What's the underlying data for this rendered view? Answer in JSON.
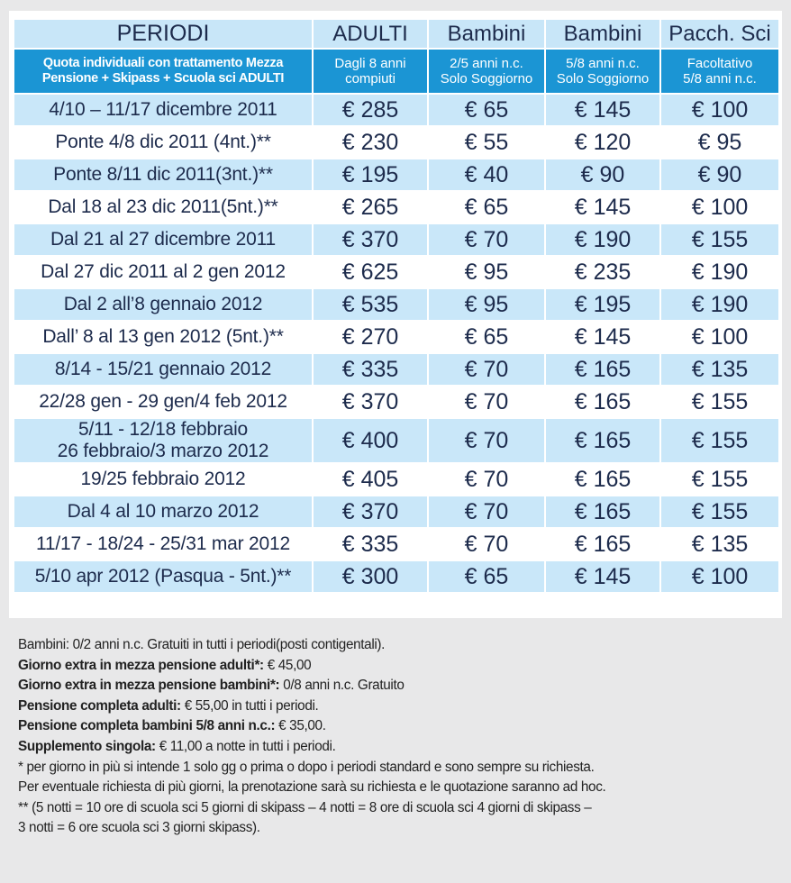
{
  "header": {
    "periodi": "PERIODI",
    "quota": [
      "Quota individuali con trattamento Mezza",
      "Pensione + Skipass + Scuola sci ADULTI"
    ],
    "columns": [
      {
        "title": "ADULTI",
        "sub": [
          "Dagli 8 anni",
          "compiuti"
        ]
      },
      {
        "title": "Bambini",
        "sub": [
          "2/5 anni n.c.",
          "Solo Soggiorno"
        ]
      },
      {
        "title": "Bambini",
        "sub": [
          "5/8 anni n.c.",
          "Solo Soggiorno"
        ]
      },
      {
        "title": "Pacch. Sci",
        "sub": [
          "Facoltativo",
          "5/8 anni n.c."
        ]
      }
    ]
  },
  "rows": [
    {
      "periodo": [
        "4/10 – 11/17 dicembre 2011"
      ],
      "prezzi": [
        "€ 285",
        "€ 65",
        "€ 145",
        "€ 100"
      ]
    },
    {
      "periodo": [
        "Ponte 4/8 dic 2011 (4nt.)**"
      ],
      "prezzi": [
        "€ 230",
        "€ 55",
        "€ 120",
        "€ 95"
      ]
    },
    {
      "periodo": [
        "Ponte 8/11 dic 2011(3nt.)**"
      ],
      "prezzi": [
        "€ 195",
        "€ 40",
        "€ 90",
        "€ 90"
      ]
    },
    {
      "periodo": [
        "Dal 18 al 23 dic 2011(5nt.)**"
      ],
      "prezzi": [
        "€ 265",
        "€ 65",
        "€ 145",
        "€ 100"
      ]
    },
    {
      "periodo": [
        "Dal 21 al 27 dicembre 2011"
      ],
      "prezzi": [
        "€ 370",
        "€ 70",
        "€ 190",
        "€ 155"
      ]
    },
    {
      "periodo": [
        "Dal 27 dic 2011 al 2 gen 2012"
      ],
      "prezzi": [
        "€ 625",
        "€ 95",
        "€ 235",
        "€ 190"
      ]
    },
    {
      "periodo": [
        "Dal 2 all’8 gennaio 2012"
      ],
      "prezzi": [
        "€ 535",
        "€ 95",
        "€ 195",
        "€ 190"
      ]
    },
    {
      "periodo": [
        "Dall’ 8 al 13 gen 2012 (5nt.)**"
      ],
      "prezzi": [
        "€ 270",
        "€ 65",
        "€ 145",
        "€ 100"
      ]
    },
    {
      "periodo": [
        "8/14 - 15/21 gennaio 2012"
      ],
      "prezzi": [
        "€ 335",
        "€ 70",
        "€ 165",
        "€ 135"
      ]
    },
    {
      "periodo": [
        "22/28 gen - 29 gen/4 feb 2012"
      ],
      "prezzi": [
        "€ 370",
        "€ 70",
        "€ 165",
        "€ 155"
      ]
    },
    {
      "periodo": [
        "5/11 - 12/18 febbraio",
        "26 febbraio/3 marzo 2012"
      ],
      "prezzi": [
        "€ 400",
        "€ 70",
        "€ 165",
        "€ 155"
      ]
    },
    {
      "periodo": [
        "19/25 febbraio 2012"
      ],
      "prezzi": [
        "€ 405",
        "€ 70",
        "€ 165",
        "€ 155"
      ]
    },
    {
      "periodo": [
        "Dal 4 al 10 marzo 2012"
      ],
      "prezzi": [
        "€ 370",
        "€ 70",
        "€ 165",
        "€ 155"
      ]
    },
    {
      "periodo": [
        "11/17 - 18/24 - 25/31 mar 2012"
      ],
      "prezzi": [
        "€ 335",
        "€ 70",
        "€ 165",
        "€ 135"
      ]
    },
    {
      "periodo": [
        "5/10 apr 2012 (Pasqua - 5nt.)**"
      ],
      "prezzi": [
        "€ 300",
        "€ 65",
        "€ 145",
        "€ 100"
      ]
    }
  ],
  "notes": [
    {
      "text": "Bambini: 0/2 anni n.c. Gratuiti in tutti i periodi(posti contigentali)."
    },
    {
      "bold": "Giorno extra in mezza pensione adulti*:",
      "text": "€ 45,00"
    },
    {
      "bold": "Giorno extra in mezza pensione bambini*:",
      "text": "0/8 anni n.c. Gratuito"
    },
    {
      "bold": "Pensione completa adulti:",
      "text": "€ 55,00 in tutti i periodi."
    },
    {
      "bold": "Pensione completa bambini 5/8 anni n.c.:",
      "text": "€ 35,00."
    },
    {
      "bold": "Supplemento singola:",
      "text": "€ 11,00 a notte in tutti i periodi."
    },
    {
      "text": "* per giorno in più si intende 1 solo gg o prima o dopo i periodi standard e sono sempre su richiesta."
    },
    {
      "text": "Per eventuale richiesta di più giorni, la prenotazione sarà su richiesta e le quotazione saranno ad hoc."
    },
    {
      "text": "** (5 notti = 10 ore di scuola sci 5 giorni di skipass – 4 notti = 8 ore di scuola sci 4 giorni di skipass –"
    },
    {
      "text": "3 notti = 6 ore scuola sci 3 giorni skipass)."
    }
  ]
}
